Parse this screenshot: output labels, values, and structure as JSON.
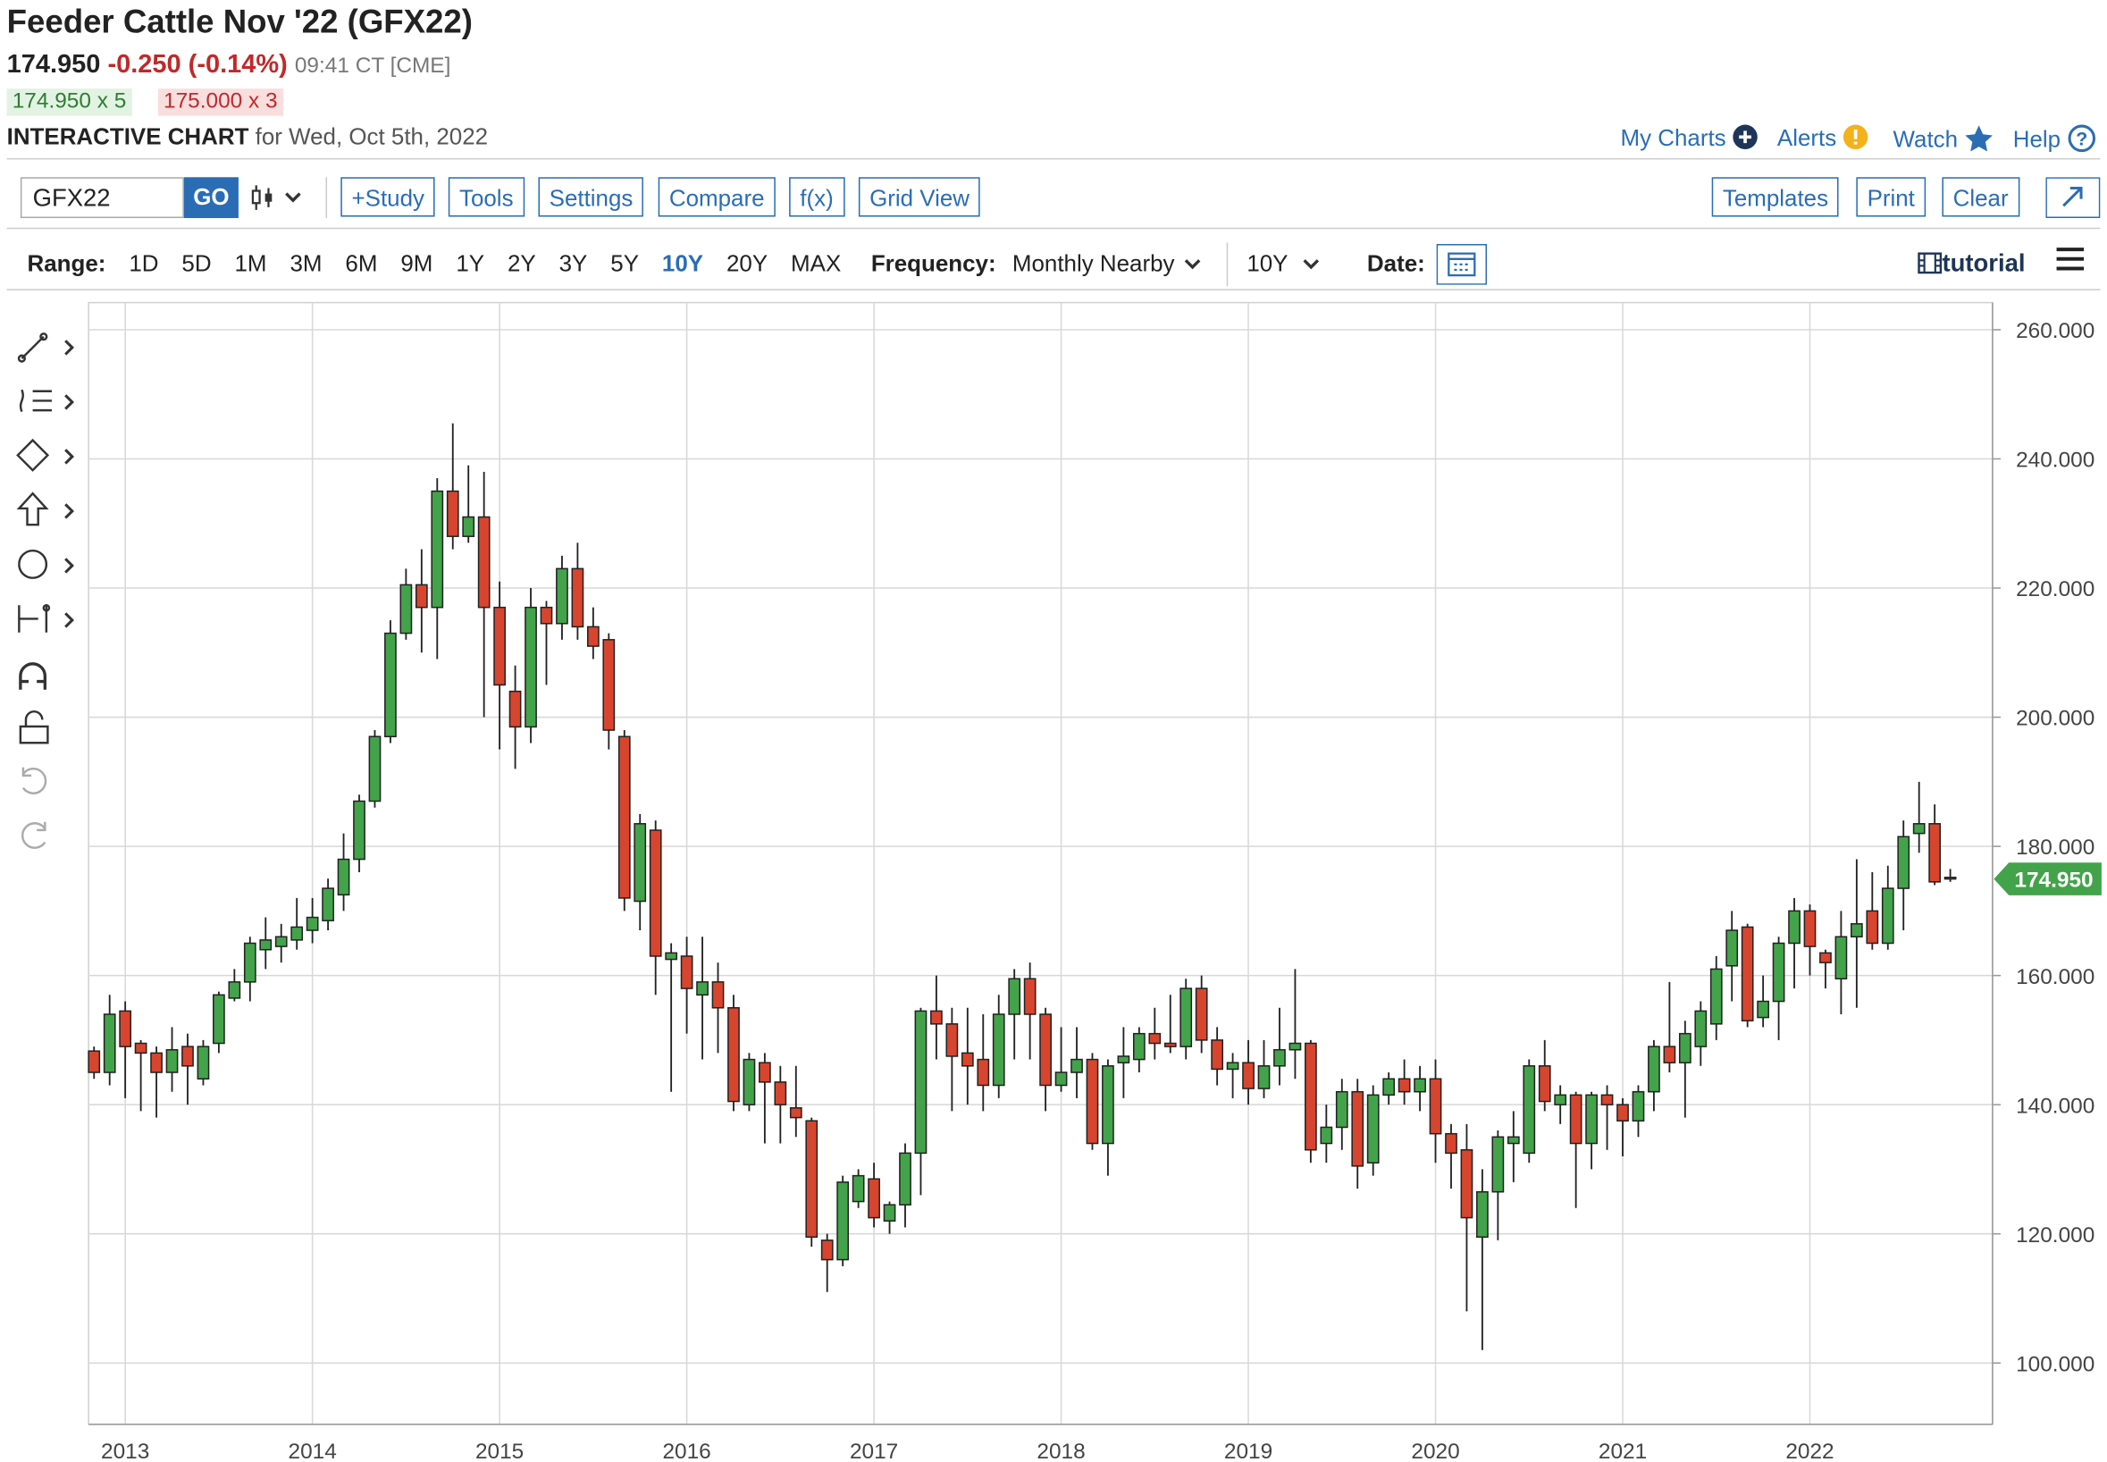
{
  "header": {
    "title": "Feeder Cattle Nov '22 (GFX22)",
    "last": "174.950",
    "change": "-0.250 (-0.14%)",
    "time": "09:41 CT [CME]",
    "bid": "174.950 x 5",
    "ask": "175.000 x 3",
    "chart_label": "INTERACTIVE CHART",
    "chart_date": "for Wed, Oct 5th, 2022"
  },
  "nav": [
    "My Charts",
    "Alerts",
    "Watch",
    "Help"
  ],
  "toolbar": {
    "symbol": "GFX22",
    "go": "GO",
    "buttons": [
      "+Study",
      "Tools",
      "Settings",
      "Compare",
      "f(x)",
      "Grid View"
    ],
    "right_buttons": [
      "Templates",
      "Print",
      "Clear"
    ]
  },
  "range_bar": {
    "label": "Range:",
    "options": [
      "1D",
      "5D",
      "1M",
      "3M",
      "6M",
      "9M",
      "1Y",
      "2Y",
      "3Y",
      "5Y",
      "10Y",
      "20Y",
      "MAX"
    ],
    "selected_index": 10,
    "frequency_label": "Frequency:",
    "frequency": "Monthly Nearby",
    "period": "10Y",
    "date_label": "Date:",
    "tutorial": "tutorial"
  },
  "chart_data": {
    "type": "candlestick",
    "categories": [
      null,
      null,
      "2013",
      null,
      null,
      null,
      null,
      null,
      null,
      null,
      null,
      null,
      null,
      null,
      "2014",
      null,
      null,
      null,
      null,
      null,
      null,
      null,
      null,
      null,
      null,
      null,
      "2015",
      null,
      null,
      null,
      null,
      null,
      null,
      null,
      null,
      null,
      null,
      null,
      "2016",
      null,
      null,
      null,
      null,
      null,
      null,
      null,
      null,
      null,
      null,
      null,
      "2017",
      null,
      null,
      null,
      null,
      null,
      null,
      null,
      null,
      null,
      null,
      null,
      "2018",
      null,
      null,
      null,
      null,
      null,
      null,
      null,
      null,
      null,
      null,
      null,
      "2019",
      null,
      null,
      null,
      null,
      null,
      null,
      null,
      null,
      null,
      null,
      null,
      "2020",
      null,
      null,
      null,
      null,
      null,
      null,
      null,
      null,
      null,
      null,
      null,
      "2021",
      null,
      null,
      null,
      null,
      null,
      null,
      null,
      null,
      null,
      null,
      null,
      "2022",
      null,
      null,
      null,
      null,
      null,
      null,
      null,
      null,
      null
    ],
    "open": [
      148.3,
      145,
      154.5,
      149.5,
      148,
      145,
      149,
      144,
      149.5,
      156.5,
      159,
      164,
      164.5,
      165.5,
      167,
      168.5,
      172.5,
      178,
      187,
      197,
      213,
      220.5,
      217,
      235,
      228,
      231,
      217,
      204,
      198.5,
      217,
      214.5,
      223,
      214,
      212,
      197,
      171.5,
      182.5,
      162.5,
      163,
      157,
      159,
      155,
      140,
      146.5,
      143.5,
      139.5,
      137.5,
      119,
      116,
      125,
      128.5,
      122,
      124.5,
      132.5,
      154.5,
      152.5,
      148,
      147,
      143,
      154,
      159.5,
      154,
      143,
      145,
      147,
      134,
      146.5,
      147,
      151,
      149.5,
      149,
      158,
      150,
      145.5,
      146.5,
      142.5,
      146,
      148.5,
      149.5,
      134,
      136.5,
      142,
      131,
      141.5,
      144,
      142,
      144,
      135.5,
      133,
      119.5,
      126.5,
      134,
      132.5,
      146,
      140,
      141.5,
      134,
      141.5,
      140,
      137.5,
      142,
      149,
      146.5,
      149,
      152.5,
      161.5,
      167.5,
      153.5,
      156,
      165,
      170,
      163.5,
      159.5,
      166,
      170,
      165,
      173.5,
      182,
      183.5,
      175.2
    ],
    "high": [
      149,
      157,
      156,
      150,
      149,
      152,
      151,
      150,
      157.5,
      161,
      166,
      169,
      168,
      172,
      172,
      175,
      182,
      188,
      198,
      215,
      223,
      226,
      237,
      245.5,
      239,
      238,
      221,
      208,
      220,
      218,
      225,
      227,
      217,
      213,
      198,
      185,
      184,
      165,
      166,
      166,
      162,
      157,
      148,
      148,
      146,
      146,
      138,
      120,
      129,
      130,
      131,
      125,
      134,
      155,
      160,
      155,
      155,
      154,
      157,
      161,
      162,
      155,
      152,
      152,
      148,
      147,
      152,
      152,
      155,
      157,
      159.5,
      160,
      152,
      148,
      150,
      150,
      155,
      161,
      150,
      140,
      144,
      144,
      143,
      145,
      147,
      146,
      147,
      137,
      137,
      130,
      136,
      139,
      147,
      150,
      143,
      142,
      142,
      143,
      141,
      143,
      150,
      159,
      153,
      156,
      163,
      170,
      168,
      160,
      166,
      172,
      171,
      164,
      170,
      178,
      176,
      177,
      184,
      190,
      186.5,
      176.5
    ],
    "low": [
      144,
      143,
      141,
      139,
      138,
      142,
      140,
      143,
      148,
      156,
      156,
      161,
      162,
      164,
      165,
      167,
      170,
      176,
      186,
      196,
      212,
      210,
      209,
      226,
      227,
      200,
      195,
      192,
      196,
      205,
      212,
      212,
      209,
      195,
      170,
      167,
      157,
      142,
      151,
      147,
      148,
      139,
      139,
      134,
      134,
      135,
      118,
      111,
      115,
      124,
      121,
      120,
      121,
      126,
      147,
      139,
      140,
      139,
      141,
      147,
      147,
      139,
      142,
      141,
      133,
      129,
      141,
      145,
      147,
      148,
      147,
      148,
      143,
      141,
      140,
      141,
      143,
      144,
      131,
      131,
      133,
      127,
      129,
      140,
      140,
      139,
      131,
      127,
      108,
      102,
      119,
      128,
      131,
      139,
      137,
      124,
      130,
      133,
      132,
      135,
      139,
      145,
      138,
      146,
      150,
      156,
      152,
      152,
      150,
      158,
      160,
      158,
      154,
      155,
      164,
      164,
      167,
      179,
      174,
      174.5
    ],
    "close": [
      145,
      154,
      149,
      148,
      145,
      148.5,
      146,
      149,
      157,
      159,
      165,
      165.5,
      166,
      167.5,
      169,
      173.5,
      178,
      187,
      197,
      213,
      220.5,
      217,
      235,
      228,
      231,
      217,
      205,
      198.5,
      217,
      214.5,
      223,
      214,
      211,
      198,
      172,
      183.5,
      163,
      163.5,
      158,
      159,
      155,
      140.5,
      147,
      143.5,
      140,
      138,
      119.5,
      116,
      128,
      129,
      122.5,
      124.5,
      132.5,
      154.5,
      152.5,
      147.5,
      146,
      143,
      154,
      159.5,
      154,
      143,
      145,
      147,
      134,
      146,
      147.5,
      151,
      149.5,
      149,
      158,
      150,
      145.5,
      146.5,
      142.5,
      146,
      148.5,
      149.5,
      133,
      136.5,
      142,
      130.5,
      141.5,
      144,
      142,
      144,
      135.5,
      132.5,
      122.5,
      126.5,
      135,
      135,
      146,
      140.5,
      141.5,
      134,
      141.5,
      140,
      137.5,
      142,
      149,
      146.5,
      151,
      154.5,
      161,
      167,
      153,
      156,
      165,
      170,
      164.5,
      162,
      166,
      168,
      165,
      173.5,
      181.5,
      183.5,
      174.5,
      174.95
    ],
    "ylim": [
      90.5,
      264.2
    ],
    "yticks": [
      {
        "value": 100,
        "label": "100.000"
      },
      {
        "value": 120,
        "label": "120.000"
      },
      {
        "value": 140,
        "label": "140.000"
      },
      {
        "value": 160,
        "label": "160.000"
      },
      {
        "value": 180,
        "label": "180.000"
      },
      {
        "value": 200,
        "label": "200.000"
      },
      {
        "value": 220,
        "label": "220.000"
      },
      {
        "value": 240,
        "label": "240.000"
      },
      {
        "value": 260,
        "label": "260.000"
      }
    ],
    "last_price": {
      "value": 174.95,
      "label": "174.950"
    },
    "up_color": "#43a34a",
    "down_color": "#d8452e",
    "grid": true
  }
}
